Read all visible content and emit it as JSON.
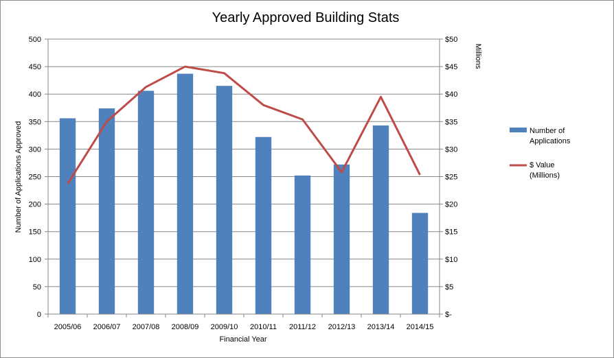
{
  "chart_data": {
    "type": "bar",
    "title": "Yearly Approved Building Stats",
    "xlabel": "Financial Year",
    "ylabel": "Number of Applications Approved",
    "y2label": "Millions",
    "categories": [
      "2005/06",
      "2006/07",
      "2007/08",
      "2008/09",
      "2009/10",
      "2010/11",
      "2011/12",
      "2012/13",
      "2013/14",
      "2014/15"
    ],
    "ylim": [
      0,
      500
    ],
    "y_ticks": [
      "0",
      "50",
      "100",
      "150",
      "200",
      "250",
      "300",
      "350",
      "400",
      "450",
      "500"
    ],
    "y2lim": [
      0,
      50
    ],
    "y2_ticks": [
      "$-",
      "$5",
      "$10",
      "$15",
      "$20",
      "$25",
      "$30",
      "$35",
      "$40",
      "$45",
      "$50"
    ],
    "grid": true,
    "legend_position": "right",
    "series": [
      {
        "name": "Number of Applications",
        "legend_lines": [
          "Number of",
          "Applications"
        ],
        "type": "bar",
        "axis": "left",
        "color": "#4f81bd",
        "values": [
          356,
          374,
          406,
          437,
          415,
          322,
          252,
          272,
          343,
          184
        ]
      },
      {
        "name": "$ Value (Millions)",
        "legend_lines": [
          "$ Value",
          "(Millions)"
        ],
        "type": "line",
        "axis": "right",
        "color": "#be4b48",
        "values": [
          23.7,
          35.0,
          41.3,
          45.0,
          43.8,
          38.0,
          35.4,
          25.8,
          39.5,
          25.3
        ]
      }
    ]
  }
}
